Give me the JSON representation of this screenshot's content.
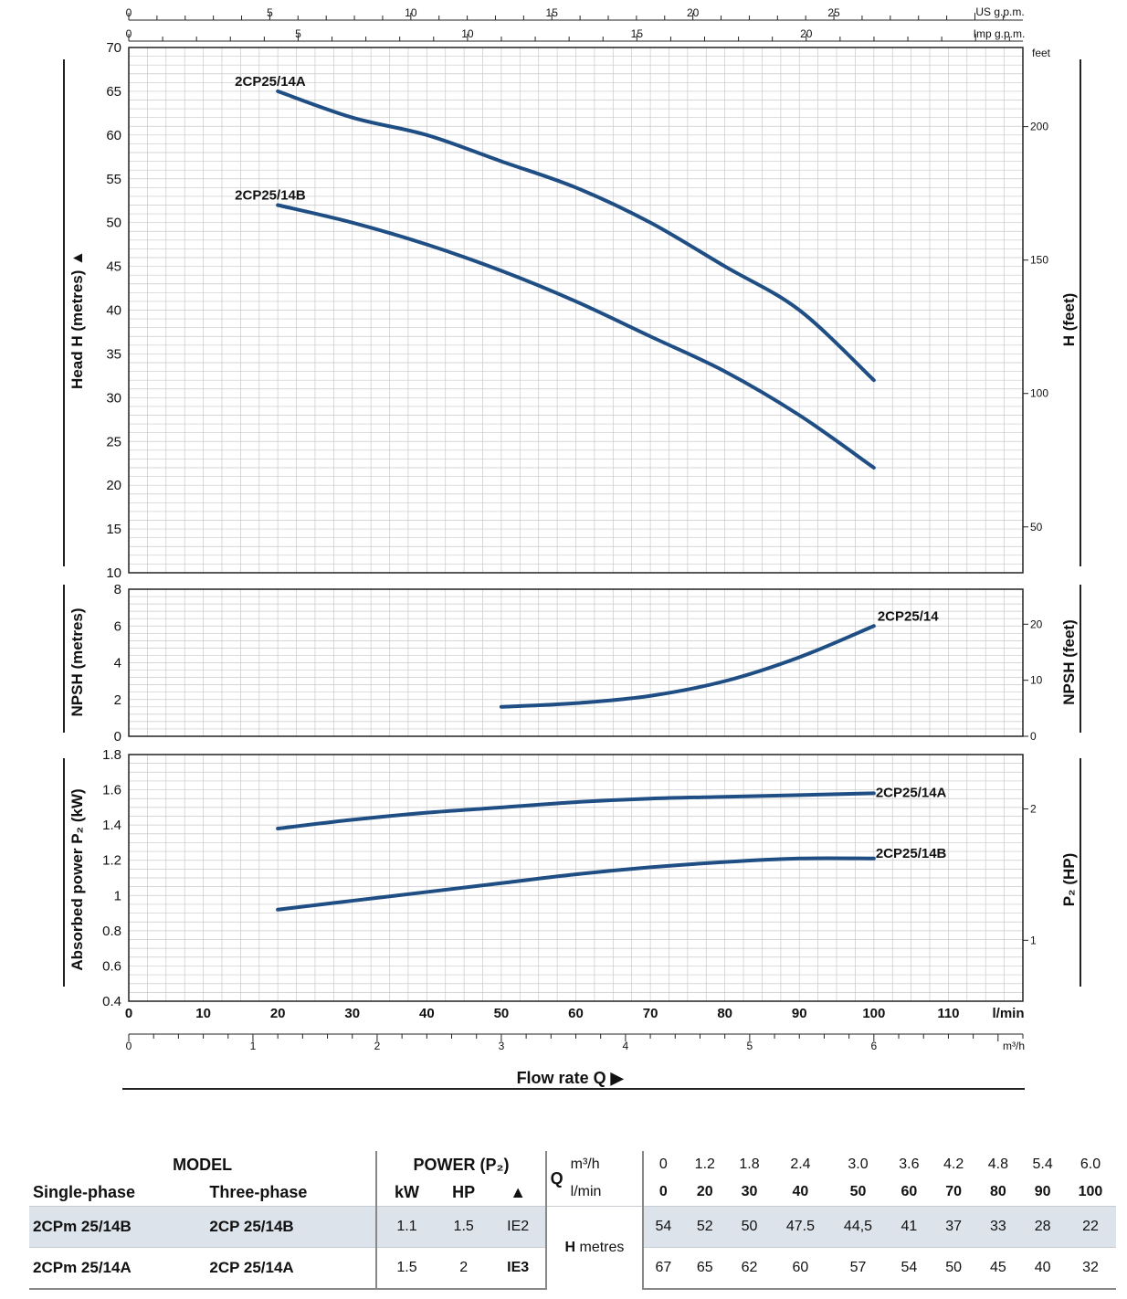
{
  "chart_data": [
    {
      "type": "line",
      "name": "head",
      "ylabel": "Head H  (metres) ▲",
      "ylabel_right": "H  (feet)",
      "right_unit": "feet",
      "xlim": [
        0,
        120
      ],
      "ylim": [
        10,
        70
      ],
      "yticks": [
        "10",
        "15",
        "20",
        "25",
        "30",
        "35",
        "40",
        "45",
        "50",
        "55",
        "60",
        "65",
        "70"
      ],
      "right_ticks": [
        "50",
        "100",
        "150",
        "200"
      ],
      "grid": true,
      "series": [
        {
          "name": "2CP25/14A",
          "x": [
            20,
            30,
            40,
            50,
            60,
            70,
            80,
            90,
            100
          ],
          "y": [
            65,
            62,
            60,
            57,
            54,
            50,
            45,
            40,
            32
          ]
        },
        {
          "name": "2CP25/14B",
          "x": [
            20,
            30,
            40,
            50,
            60,
            70,
            80,
            90,
            100
          ],
          "y": [
            52,
            50,
            47.5,
            44.5,
            41,
            37,
            33,
            28,
            22
          ]
        }
      ]
    },
    {
      "type": "line",
      "name": "npsh",
      "ylabel": "NPSH  (metres)",
      "ylabel_right": "NPSH  (feet)",
      "xlim": [
        0,
        120
      ],
      "ylim": [
        0,
        8
      ],
      "yticks": [
        "0",
        "2",
        "4",
        "6",
        "8"
      ],
      "right_ticks": [
        "0",
        "10",
        "20"
      ],
      "grid": true,
      "series": [
        {
          "name": "2CP25/14",
          "x": [
            50,
            60,
            70,
            80,
            90,
            100
          ],
          "y": [
            1.6,
            1.8,
            2.2,
            3.0,
            4.3,
            6.0
          ]
        }
      ]
    },
    {
      "type": "line",
      "name": "power",
      "ylabel": "Absorbed power  P₂  (kW)",
      "ylabel_right": "P₂  (HP)",
      "xlim": [
        0,
        120
      ],
      "ylim": [
        0.4,
        1.8
      ],
      "yticks": [
        "0.4",
        "0.6",
        "0.8",
        "1",
        "1.2",
        "1.4",
        "1.6",
        "1.8"
      ],
      "right_ticks": [
        "1",
        "2"
      ],
      "grid": true,
      "series": [
        {
          "name": "2CP25/14A",
          "x": [
            20,
            30,
            40,
            50,
            60,
            70,
            80,
            90,
            100
          ],
          "y": [
            1.38,
            1.43,
            1.47,
            1.5,
            1.53,
            1.55,
            1.56,
            1.57,
            1.58
          ]
        },
        {
          "name": "2CP25/14B",
          "x": [
            20,
            30,
            40,
            50,
            60,
            70,
            80,
            90,
            100
          ],
          "y": [
            0.92,
            0.97,
            1.02,
            1.07,
            1.12,
            1.16,
            1.19,
            1.21,
            1.21
          ]
        }
      ]
    }
  ],
  "axes": {
    "x_lmin_label": "l/min",
    "x_lmin_ticks": [
      "0",
      "10",
      "20",
      "30",
      "40",
      "50",
      "60",
      "70",
      "80",
      "90",
      "100",
      "110"
    ],
    "x_m3h_label": "m³/h",
    "x_m3h_ticks": [
      "0",
      "1",
      "2",
      "3",
      "4",
      "5",
      "6"
    ],
    "x_usgpm_label": "US g.p.m.",
    "x_usgpm_ticks": [
      "0",
      "5",
      "10",
      "15",
      "20",
      "25"
    ],
    "x_impgpm_label": "Imp g.p.m.",
    "x_impgpm_ticks": [
      "0",
      "5",
      "10",
      "15",
      "20"
    ],
    "flow_label": "Flow rate Q ▶"
  },
  "table": {
    "model": "MODEL",
    "single_phase": "Single-phase",
    "three_phase": "Three-phase",
    "power": "POWER (P₂)",
    "kw": "kW",
    "hp": "HP",
    "ie_symbol": "▲",
    "q": "Q",
    "m3h": "m³/h",
    "lmin": "l/min",
    "h": "H",
    "metres": "metres",
    "q_m3h": [
      "0",
      "1.2",
      "1.8",
      "2.4",
      "3.0",
      "3.6",
      "4.2",
      "4.8",
      "5.4",
      "6.0"
    ],
    "q_lmin": [
      "0",
      "20",
      "30",
      "40",
      "50",
      "60",
      "70",
      "80",
      "90",
      "100"
    ],
    "rows": [
      {
        "single": "2CPm 25/14B",
        "three": "2CP 25/14B",
        "kw": "1.1",
        "hp": "1.5",
        "ie": "IE2",
        "h": [
          "54",
          "52",
          "50",
          "47.5",
          "44,5",
          "41",
          "37",
          "33",
          "28",
          "22"
        ]
      },
      {
        "single": "2CPm 25/14A",
        "three": "2CP 25/14A",
        "kw": "1.5",
        "hp": "2",
        "ie": "IE3",
        "h": [
          "67",
          "65",
          "62",
          "60",
          "57",
          "54",
          "50",
          "45",
          "40",
          "32"
        ]
      }
    ]
  }
}
